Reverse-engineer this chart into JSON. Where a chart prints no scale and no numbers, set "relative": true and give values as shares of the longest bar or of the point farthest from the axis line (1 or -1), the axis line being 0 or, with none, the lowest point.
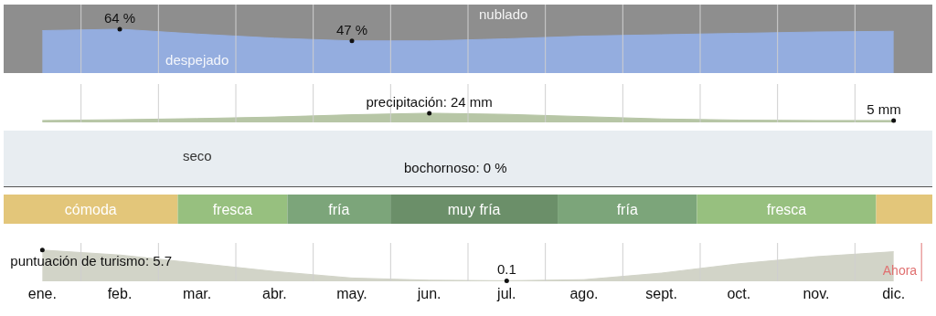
{
  "chart_data": [
    {
      "type": "area",
      "ylim": [
        0,
        100
      ],
      "tick_labels": false,
      "grid": "x",
      "annotations": [
        "nublado"
      ],
      "categories": [
        null,
        null,
        null,
        null,
        null,
        null,
        null,
        null,
        null,
        null,
        null,
        null
      ],
      "series": [
        {
          "name": "despejado",
          "color": "#94addf",
          "values": [
            62,
            64,
            57,
            51,
            47,
            47,
            50,
            54,
            56,
            58,
            60,
            61
          ],
          "value_labels": [
            null,
            "64 %",
            null,
            null,
            "47 %",
            null,
            null,
            null,
            null,
            null,
            null,
            null
          ]
        }
      ]
    },
    {
      "type": "area",
      "ylim": [
        0,
        100
      ],
      "tick_labels": false,
      "grid": "x",
      "categories": [
        null,
        null,
        null,
        null,
        null,
        null,
        null,
        null,
        null,
        null,
        null,
        null
      ],
      "series": [
        {
          "color": "#b7c6a6",
          "values": [
            5,
            7,
            10,
            14,
            20,
            24,
            21,
            15,
            9,
            6,
            5,
            5
          ],
          "value_labels": [
            null,
            null,
            null,
            null,
            null,
            "precipitación: 24 mm",
            null,
            null,
            null,
            null,
            null,
            "5 mm"
          ]
        }
      ]
    },
    {
      "type": "other",
      "annotations": [
        "seco",
        "bochornoso: 0 %"
      ]
    },
    {
      "type": "bar",
      "orientation": "horizontal",
      "stacked": true,
      "relative": true,
      "categories": [
        null
      ],
      "series": [
        {
          "name": "cómoda",
          "color": "#e3c67a",
          "values": [
            0.1875
          ]
        },
        {
          "name": "fresca",
          "color": "#97c07f",
          "values": [
            0.118
          ]
        },
        {
          "name": "fría",
          "color": "#7ca57a",
          "values": [
            0.111
          ]
        },
        {
          "name": "muy fría",
          "color": "#6b8f69",
          "values": [
            0.18
          ]
        },
        {
          "name": "fría",
          "color": "#7ca57a",
          "values": [
            0.15
          ]
        },
        {
          "name": "fresca",
          "color": "#97c07f",
          "values": [
            0.193
          ]
        },
        {
          "color": "#e3c67a",
          "values": [
            0.0605
          ]
        }
      ]
    },
    {
      "type": "area",
      "ylim": [
        0,
        7
      ],
      "tick_labels": "x",
      "grid": "x",
      "categories": [
        "ene.",
        "feb.",
        "mar.",
        "abr.",
        "may.",
        "jun.",
        "jul.",
        "ago.",
        "sept.",
        "oct.",
        "nov.",
        "dic."
      ],
      "series": [
        {
          "color": "#d2d4c8",
          "values": [
            5.7,
            4.8,
            3.3,
            1.8,
            0.6,
            0.2,
            0.1,
            0.3,
            1.5,
            3.2,
            4.5,
            5.4
          ],
          "value_labels": [
            "puntuación de turismo: 5.7",
            null,
            null,
            null,
            null,
            null,
            "0.1",
            null,
            null,
            null,
            null,
            null
          ]
        }
      ],
      "ref_lines": [
        {
          "axis": "x",
          "value": "dic.",
          "label": "Ahora",
          "color": "#e07070"
        }
      ]
    }
  ]
}
